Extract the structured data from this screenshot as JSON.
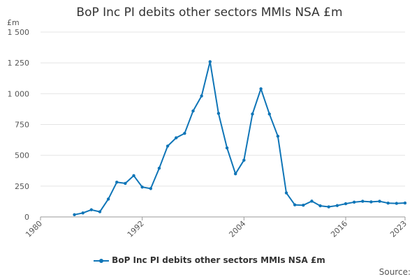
{
  "chart_data": {
    "type": "line",
    "title": "BoP Inc PI debits other sectors MMIs NSA £m",
    "ylabel": "£m",
    "xlabel": "",
    "xlim": [
      1980,
      2023
    ],
    "ylim": [
      0,
      1500
    ],
    "yticks": [
      0,
      250,
      500,
      750,
      1000,
      1250,
      1500
    ],
    "ytick_labels": [
      "0",
      "250",
      "500",
      "750",
      "1 000",
      "1 250",
      "1 500"
    ],
    "xticks": [
      1980,
      1992,
      2004,
      2016,
      2023
    ],
    "xtick_labels": [
      "1980",
      "1992",
      "2004",
      "2016",
      "2023"
    ],
    "grid": true,
    "legend_position": "bottom",
    "color": "#0f75b7",
    "series": [
      {
        "name": "BoP Inc PI debits other sectors MMIs NSA £m",
        "x": [
          1984,
          1985,
          1986,
          1987,
          1988,
          1989,
          1990,
          1991,
          1992,
          1993,
          1994,
          1995,
          1996,
          1997,
          1998,
          1999,
          2000,
          2001,
          2002,
          2003,
          2004,
          2005,
          2006,
          2007,
          2008,
          2009,
          2010,
          2011,
          2012,
          2013,
          2014,
          2015,
          2016,
          2017,
          2018,
          2019,
          2020,
          2021,
          2022,
          2023
        ],
        "values": [
          18,
          32,
          58,
          42,
          145,
          282,
          272,
          335,
          242,
          230,
          395,
          575,
          642,
          678,
          860,
          982,
          1260,
          840,
          560,
          350,
          460,
          835,
          1040,
          835,
          655,
          195,
          98,
          95,
          128,
          90,
          82,
          92,
          107,
          120,
          127,
          122,
          127,
          112,
          110,
          113
        ]
      }
    ]
  },
  "legend": {
    "label": "BoP Inc PI debits other sectors MMIs NSA £m"
  },
  "source": {
    "label": "Source:"
  }
}
